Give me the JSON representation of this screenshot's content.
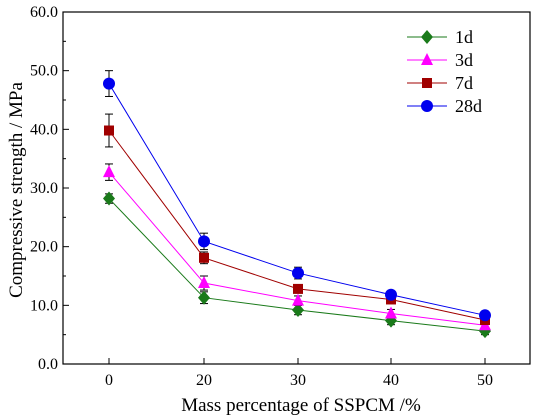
{
  "chart_data": {
    "type": "line",
    "title": "",
    "xlabel": "Mass percentage of SSPCM /%",
    "ylabel": "Compressive strength / MPa",
    "categories": [
      "0",
      "20",
      "30",
      "40",
      "50"
    ],
    "ylim": [
      0,
      60
    ],
    "yticks": [
      "0.0",
      "10.0",
      "20.0",
      "30.0",
      "40.0",
      "50.0",
      "60.0"
    ],
    "grid": false,
    "legend_position": "top-right",
    "series": [
      {
        "name": "1d",
        "color": "#1a7a1a",
        "marker": "diamond",
        "values": [
          28.2,
          11.3,
          9.2,
          7.4,
          5.6
        ],
        "errors": [
          0.8,
          1.0,
          0.8,
          0.7,
          0.6
        ]
      },
      {
        "name": "3d",
        "color": "#ff00ff",
        "marker": "triangle",
        "values": [
          32.7,
          13.8,
          10.8,
          8.6,
          6.6
        ],
        "errors": [
          1.4,
          1.2,
          0.8,
          0.7,
          0.6
        ]
      },
      {
        "name": "7d",
        "color": "#a00000",
        "marker": "square",
        "values": [
          39.8,
          18.1,
          12.8,
          11.0,
          7.5
        ],
        "errors": [
          2.8,
          1.0,
          0.7,
          0.6,
          0.5
        ]
      },
      {
        "name": "28d",
        "color": "#0000ee",
        "marker": "circle",
        "values": [
          47.8,
          20.9,
          15.5,
          11.8,
          8.3
        ],
        "errors": [
          2.2,
          1.4,
          1.0,
          0.6,
          0.6
        ]
      }
    ]
  }
}
